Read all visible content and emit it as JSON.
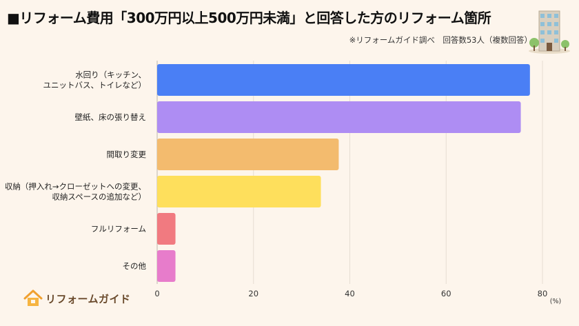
{
  "header": {
    "title": "■リフォーム費用「300万円以上500万円未満」と回答した方のリフォーム箇所",
    "note": "※リフォームガイド調べ　回答数53人（複数回答）"
  },
  "logo": {
    "text": "リフォームガイド",
    "icon": "house-icon"
  },
  "building_icon": "apartment-building-icon",
  "chart_data": {
    "type": "bar",
    "orientation": "horizontal",
    "categories": [
      [
        "水回り（キッチン、",
        "ユニットバス、トイレなど）"
      ],
      [
        "壁紙、床の張り替え"
      ],
      [
        "間取り変更"
      ],
      [
        "収納（押入れ→クローゼットへの変更、",
        "収納スペースの追加など）"
      ],
      [
        "フルリフォーム"
      ],
      [
        "その他"
      ]
    ],
    "values": [
      77.4,
      75.5,
      37.7,
      34.0,
      3.8,
      3.8
    ],
    "colors": [
      "#4a7ff5",
      "#ae8df3",
      "#f3bb6e",
      "#fedf5c",
      "#f17a80",
      "#e77ccb"
    ],
    "xlim": [
      0,
      80
    ],
    "xticks": [
      "0",
      "20",
      "40",
      "60",
      "80"
    ],
    "xunit": "(%)",
    "grid": true
  }
}
